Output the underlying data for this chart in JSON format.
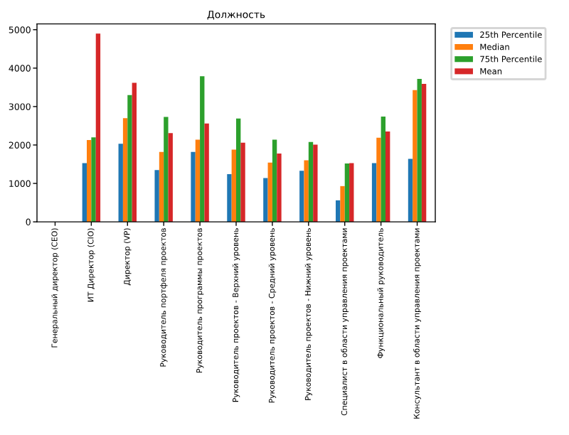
{
  "chart_data": {
    "type": "bar",
    "title": "Должность",
    "categories": [
      "Генеральный директор (CEO)",
      "ИТ Директор (CIO)",
      "Директор (VP)",
      "Руководитель портфеля проектов",
      "Руководитель программы проектов",
      "Руководитель проектов - Верхний уровень",
      "Руководитель проектов - Средний уровень",
      "Руководитель проектов - Нижний уровень",
      "Специалист в области управления проектами",
      "Функциональный руководитель",
      "Консультант в области управления проектами"
    ],
    "series": [
      {
        "name": "25th Percentile",
        "color": "#1f77b4",
        "values": [
          null,
          1530,
          2030,
          1350,
          1820,
          1240,
          1140,
          1330,
          560,
          1530,
          1640
        ]
      },
      {
        "name": "Median",
        "color": "#ff7f0e",
        "values": [
          null,
          2130,
          2700,
          1820,
          2140,
          1880,
          1540,
          1600,
          930,
          2190,
          3430
        ]
      },
      {
        "name": "75th Percentile",
        "color": "#2ca02c",
        "values": [
          null,
          2200,
          3300,
          2730,
          3790,
          2690,
          2140,
          2080,
          1520,
          2740,
          3720
        ]
      },
      {
        "name": "Mean",
        "color": "#d62728",
        "values": [
          null,
          4900,
          3620,
          2310,
          2560,
          2060,
          1780,
          2010,
          1530,
          2350,
          3590
        ]
      }
    ],
    "ylim": [
      0,
      5150
    ],
    "yticks": [
      0,
      1000,
      2000,
      3000,
      4000,
      5000
    ],
    "grid": false,
    "legend": "top right"
  }
}
